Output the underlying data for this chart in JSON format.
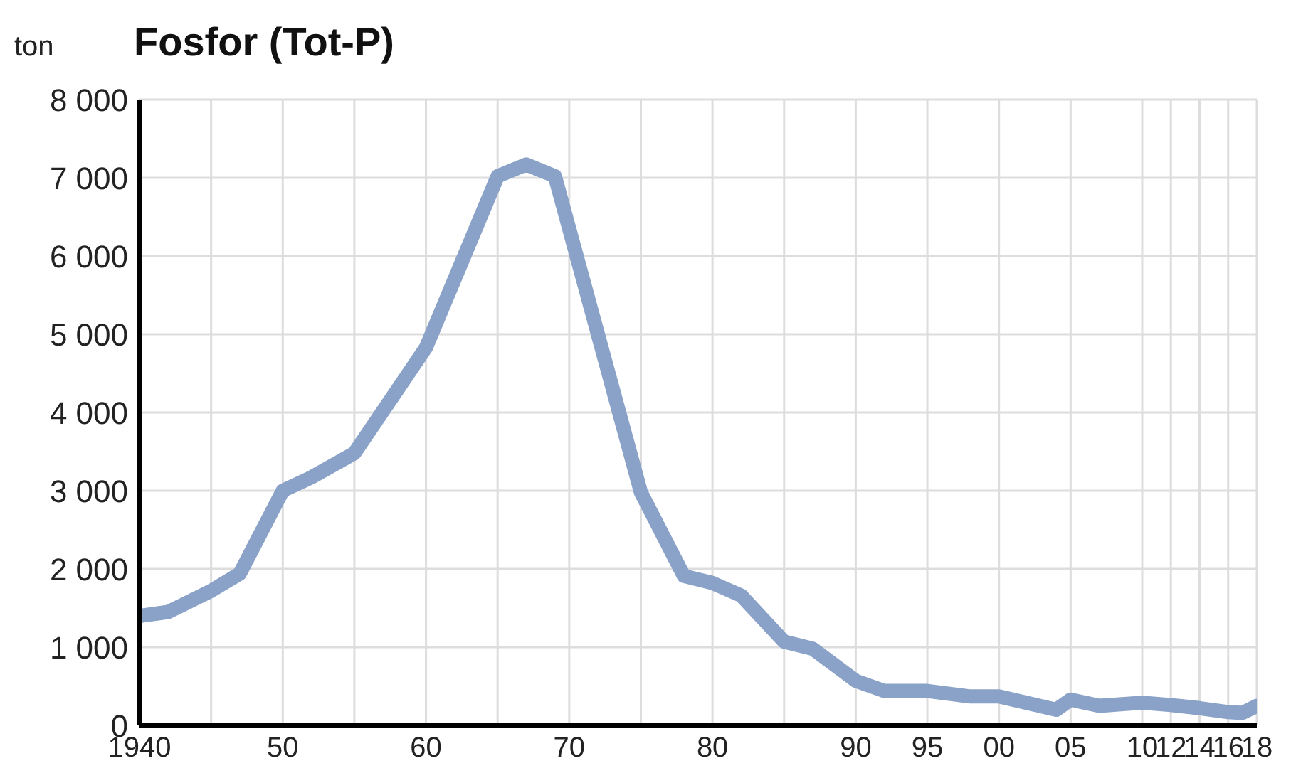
{
  "chart_data": {
    "type": "line",
    "title": "Fosfor (Tot-P)",
    "ylabel": "ton",
    "x": [
      1940,
      1942,
      1945,
      1947,
      1950,
      1952,
      1955,
      1960,
      1965,
      1967,
      1969,
      1975,
      1978,
      1980,
      1982,
      1985,
      1987,
      1990,
      1992,
      1995,
      1998,
      2000,
      2004,
      2005,
      2007,
      2010,
      2012,
      2014,
      2016,
      2017,
      2018
    ],
    "series": [
      {
        "color": "#8aa2c8",
        "values": [
          1400,
          1450,
          1720,
          1940,
          3000,
          3170,
          3480,
          4830,
          7020,
          7170,
          7020,
          2980,
          1910,
          1820,
          1660,
          1070,
          980,
          570,
          440,
          440,
          370,
          370,
          200,
          330,
          250,
          290,
          260,
          220,
          170,
          160,
          250
        ]
      }
    ],
    "xlim": [
      1940,
      2018
    ],
    "xticks": [
      {
        "value": 1940,
        "label": "1940"
      },
      {
        "value": 1945,
        "label": null
      },
      {
        "value": 1950,
        "label": "50"
      },
      {
        "value": 1955,
        "label": null
      },
      {
        "value": 1960,
        "label": "60"
      },
      {
        "value": 1965,
        "label": null
      },
      {
        "value": 1970,
        "label": "70"
      },
      {
        "value": 1975,
        "label": null
      },
      {
        "value": 1980,
        "label": "80"
      },
      {
        "value": 1985,
        "label": null
      },
      {
        "value": 1990,
        "label": "90"
      },
      {
        "value": 1995,
        "label": "95"
      },
      {
        "value": 2000,
        "label": "00"
      },
      {
        "value": 2005,
        "label": "05"
      },
      {
        "value": 2010,
        "label": "10"
      },
      {
        "value": 2012,
        "label": "12"
      },
      {
        "value": 2014,
        "label": "14"
      },
      {
        "value": 2016,
        "label": "16"
      },
      {
        "value": 2018,
        "label": "18"
      }
    ],
    "ylim": [
      0,
      8000
    ],
    "yticks": [
      {
        "value": 0,
        "label": "0"
      },
      {
        "value": 1000,
        "label": "1 000"
      },
      {
        "value": 2000,
        "label": "2 000"
      },
      {
        "value": 3000,
        "label": "3 000"
      },
      {
        "value": 4000,
        "label": "4 000"
      },
      {
        "value": 5000,
        "label": "5 000"
      },
      {
        "value": 6000,
        "label": "6 000"
      },
      {
        "value": 7000,
        "label": "7 000"
      },
      {
        "value": 8000,
        "label": "8 000"
      }
    ],
    "grid": true,
    "legend": false,
    "marker": "none",
    "line_style": "solid"
  }
}
